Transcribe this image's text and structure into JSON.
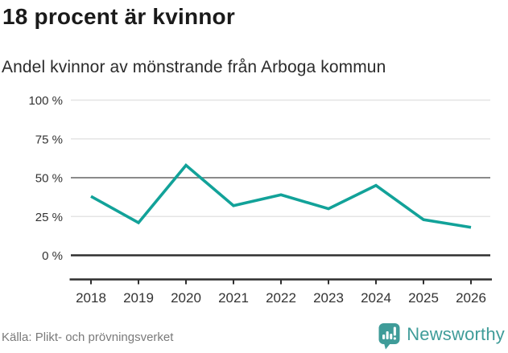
{
  "title": "18 procent är kvinnor",
  "subtitle": "Andel kvinnor av mönstrande från Arboga kommun",
  "source": "Källa: Plikt- och prövningsverket",
  "logo": {
    "text": "Newsworthy",
    "icon": "newsworthy-bar-chart-bubble-icon"
  },
  "colors": {
    "line": "#12a299",
    "grid_light": "#e4e4e4",
    "grid_reference": "#8a8a8a",
    "axis": "#2f2f2f",
    "tick_label": "#333333",
    "title": "#1a1a1a",
    "subtitle": "#2b2b2b",
    "source": "#7a7a7a",
    "logo_teal": "#3f9c99"
  },
  "chart_data": {
    "type": "line",
    "title": "18 procent är kvinnor",
    "subtitle": "Andel kvinnor av mönstrande från Arboga kommun",
    "x": [
      2018,
      2019,
      2020,
      2021,
      2022,
      2023,
      2024,
      2025,
      2026
    ],
    "series": [
      {
        "name": "Andel kvinnor av mönstrande",
        "values": [
          38,
          21,
          58,
          32,
          39,
          30,
          45,
          23,
          18
        ]
      }
    ],
    "unit": "%",
    "xlabel": "",
    "ylabel": "",
    "ylim": [
      0,
      100
    ],
    "yticks": [
      0,
      25,
      50,
      75,
      100
    ],
    "ytick_labels": [
      "0 %",
      "25 %",
      "50 %",
      "75 %",
      "100 %"
    ],
    "xtick_labels": [
      "2018",
      "2019",
      "2020",
      "2021",
      "2022",
      "2023",
      "2024",
      "2025",
      "2026"
    ],
    "grid": "horizontal",
    "reference_line": 50,
    "legend": "none",
    "source": "Källa: Plikt- och prövningsverket"
  }
}
